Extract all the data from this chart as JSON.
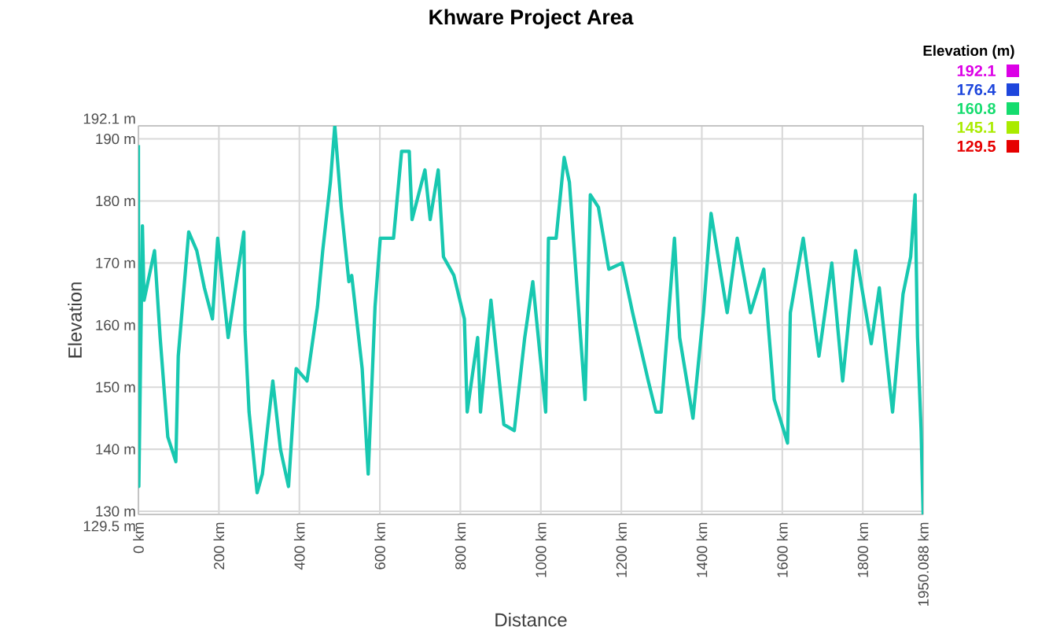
{
  "chart_data": {
    "type": "line",
    "title": "Khware Project Area",
    "xlabel": "Distance",
    "ylabel": "Elevation",
    "annotations": [
      "Elevation (m)",
      "192.1",
      "176.4",
      "160.8",
      "145.1",
      "129.5"
    ],
    "xlim": [
      0,
      1950.088
    ],
    "ylim": [
      129.5,
      192.1
    ],
    "xticks": [
      {
        "value": 0,
        "label": "0 km"
      },
      {
        "value": 200,
        "label": "200 km"
      },
      {
        "value": 400,
        "label": "400 km"
      },
      {
        "value": 600,
        "label": "600 km"
      },
      {
        "value": 800,
        "label": "800 km"
      },
      {
        "value": 1000,
        "label": "1000 km"
      },
      {
        "value": 1200,
        "label": "1200 km"
      },
      {
        "value": 1400,
        "label": "1400 km"
      },
      {
        "value": 1600,
        "label": "1600 km"
      },
      {
        "value": 1800,
        "label": "1800 km"
      },
      {
        "value": 1950.088,
        "label": "1950.088 km"
      }
    ],
    "yticks": [
      {
        "value": 129.5,
        "label": "129.5 m"
      },
      {
        "value": 130,
        "label": "130 m"
      },
      {
        "value": 140,
        "label": "140 m"
      },
      {
        "value": 150,
        "label": "150 m"
      },
      {
        "value": 160,
        "label": "160 m"
      },
      {
        "value": 170,
        "label": "170 m"
      },
      {
        "value": 180,
        "label": "180 m"
      },
      {
        "value": 190,
        "label": "190 m"
      },
      {
        "value": 192.1,
        "label": "192.1 m"
      }
    ],
    "series": [
      {
        "color": "#18c8b0",
        "values": [
          189,
          134,
          176,
          164,
          172,
          158,
          142,
          138,
          155,
          175,
          172,
          166,
          161,
          174,
          158,
          175,
          159,
          146,
          133,
          136,
          151,
          140,
          134,
          153,
          151,
          163,
          172,
          183,
          192.1,
          179,
          167,
          168,
          153,
          136,
          163,
          174,
          174,
          188,
          188,
          177,
          185,
          177,
          185,
          171,
          168,
          161,
          146,
          158,
          146,
          164,
          144,
          143,
          158,
          167,
          146,
          174,
          174,
          187,
          183,
          148,
          181,
          179,
          169,
          170,
          162,
          151,
          146,
          146,
          174,
          158,
          145,
          162,
          178,
          162,
          174,
          162,
          169,
          148,
          141,
          162,
          174,
          155,
          170,
          151,
          172,
          157,
          166,
          146,
          165,
          171,
          181,
          158,
          143,
          129.5
        ]
      }
    ],
    "grid": true,
    "x": [
      0,
      1,
      10,
      14,
      40,
      54,
      73,
      93,
      99,
      125,
      145,
      164,
      184,
      197,
      223,
      262,
      265,
      275,
      295,
      308,
      334,
      353,
      373,
      392,
      419,
      445,
      458,
      477,
      488,
      504,
      523,
      530,
      556,
      571,
      588,
      601,
      634,
      654,
      673,
      680,
      712,
      725,
      745,
      758,
      784,
      810,
      817,
      843,
      850,
      876,
      908,
      934,
      960,
      980,
      1012,
      1019,
      1038,
      1058,
      1071,
      1110,
      1123,
      1143,
      1169,
      1202,
      1228,
      1267,
      1286,
      1299,
      1332,
      1345,
      1378,
      1404,
      1423,
      1463,
      1488,
      1521,
      1554,
      1580,
      1613,
      1620,
      1652,
      1691,
      1723,
      1750,
      1782,
      1821,
      1841,
      1874,
      1900,
      1919,
      1930,
      1936,
      1945,
      1950
    ]
  }
}
